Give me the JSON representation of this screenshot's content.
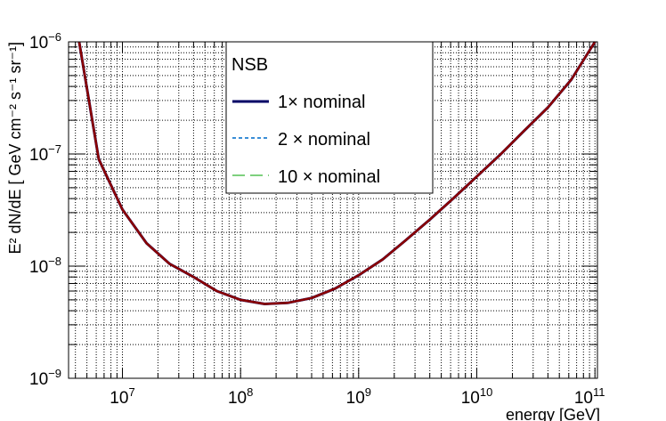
{
  "chart_data": {
    "type": "line",
    "title": "",
    "xlabel": "energy [GeV]",
    "ylabel": "E² dN/dE [ GeV cm⁻² s⁻¹ sr⁻¹]",
    "x_scale": "log",
    "y_scale": "log",
    "xlim": [
      3500000.0,
      105000000000.0
    ],
    "ylim": [
      1e-09,
      1e-06
    ],
    "grid": true,
    "x_tick_labels": [
      {
        "value": 10000000.0,
        "base": "10",
        "exp": "7"
      },
      {
        "value": 100000000.0,
        "base": "10",
        "exp": "8"
      },
      {
        "value": 1000000000.0,
        "base": "10",
        "exp": "9"
      },
      {
        "value": 10000000000.0,
        "base": "10",
        "exp": "10"
      },
      {
        "value": 100000000000.0,
        "base": "10",
        "exp": "11"
      }
    ],
    "y_tick_labels": [
      {
        "value": 1e-09,
        "base": "10",
        "exp": "−9"
      },
      {
        "value": 1e-08,
        "base": "10",
        "exp": "−8"
      },
      {
        "value": 1e-07,
        "base": "10",
        "exp": "−7"
      },
      {
        "value": 1e-06,
        "base": "10",
        "exp": "−6"
      }
    ],
    "legend": {
      "title": "NSB",
      "placement": "top-center",
      "entries": [
        "1× nominal",
        "2 × nominal",
        "10 × nominal"
      ]
    },
    "x": [
      4300000.0,
      6300000.0,
      10000000.0,
      16000000.0,
      25000000.0,
      40000000.0,
      63000000.0,
      100000000.0,
      160000000.0,
      250000000.0,
      400000000.0,
      630000000.0,
      1000000000.0,
      1600000000.0,
      2500000000.0,
      4000000000.0,
      6300000000.0,
      10000000000.0,
      16000000000.0,
      25000000000.0,
      40000000000.0,
      63000000000.0,
      100000000000.0
    ],
    "series": [
      {
        "name": "1× nominal",
        "color": "#000066",
        "dash": "solid",
        "values": [
          1e-06,
          9e-08,
          3.2e-08,
          1.6e-08,
          1.05e-08,
          8e-09,
          6e-09,
          5e-09,
          4.6e-09,
          4.7e-09,
          5.2e-09,
          6.3e-09,
          8.3e-09,
          1.15e-08,
          1.7e-08,
          2.6e-08,
          4e-08,
          6.3e-08,
          1e-07,
          1.6e-07,
          2.6e-07,
          4.6e-07,
          1e-06
        ]
      },
      {
        "name": "2 × nominal",
        "color": "#3a8ed6",
        "dash": "dotted",
        "values": [
          1e-06,
          9e-08,
          3.2e-08,
          1.6e-08,
          1.05e-08,
          8e-09,
          6e-09,
          5e-09,
          4.6e-09,
          4.7e-09,
          5.2e-09,
          6.3e-09,
          8.3e-09,
          1.15e-08,
          1.7e-08,
          2.6e-08,
          4e-08,
          6.3e-08,
          1e-07,
          1.6e-07,
          2.6e-07,
          4.6e-07,
          1e-06
        ]
      },
      {
        "name": "10 × nominal",
        "color": "#7ed07e",
        "dash": "dashed",
        "values": [
          1e-06,
          9e-08,
          3.2e-08,
          1.6e-08,
          1.05e-08,
          8e-09,
          6e-09,
          5e-09,
          4.6e-09,
          4.7e-09,
          5.2e-09,
          6.3e-09,
          8.3e-09,
          1.15e-08,
          1.7e-08,
          2.6e-08,
          4e-08,
          6.3e-08,
          1e-07,
          1.6e-07,
          2.6e-07,
          4.6e-07,
          1e-06
        ]
      },
      {
        "color": "#8b0000",
        "dash": "solid",
        "values": [
          1e-06,
          9e-08,
          3.2e-08,
          1.6e-08,
          1.05e-08,
          8e-09,
          6e-09,
          5e-09,
          4.6e-09,
          4.7e-09,
          5.2e-09,
          6.3e-09,
          8.3e-09,
          1.15e-08,
          1.7e-08,
          2.6e-08,
          4e-08,
          6.3e-08,
          1e-07,
          1.6e-07,
          2.6e-07,
          4.6e-07,
          1e-06
        ]
      }
    ]
  }
}
